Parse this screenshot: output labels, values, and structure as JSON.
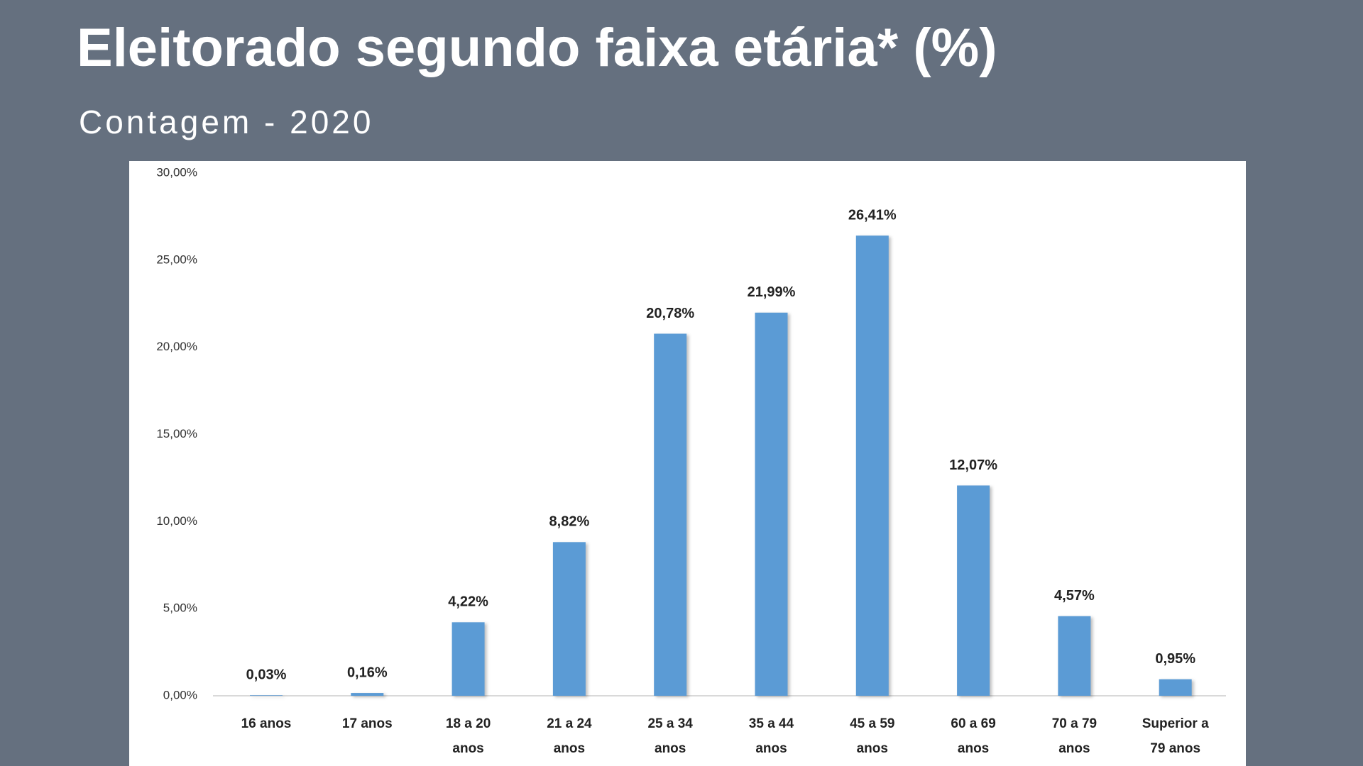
{
  "chart_data": {
    "type": "bar",
    "title": "Eleitorado segundo faixa etária* (%)",
    "subtitle": "Contagem - 2020",
    "categories": [
      "16 anos",
      "17 anos",
      "18 a 20 anos",
      "21 a 24 anos",
      "25 a 34 anos",
      "35 a 44 anos",
      "45 a 59 anos",
      "60 a 69 anos",
      "70 a 79 anos",
      "Superior a 79 anos"
    ],
    "values": [
      0.03,
      0.16,
      4.22,
      8.82,
      20.78,
      21.99,
      26.41,
      12.07,
      4.57,
      0.95
    ],
    "value_labels": [
      "0,03%",
      "0,16%",
      "4,22%",
      "8,82%",
      "20,78%",
      "21,99%",
      "26,41%",
      "12,07%",
      "4,57%",
      "0,95%"
    ],
    "color": "#5b9bd5",
    "ylim": [
      0,
      30
    ],
    "yticks": [
      {
        "value": 0,
        "label": "0,00%"
      },
      {
        "value": 5,
        "label": "5,00%"
      },
      {
        "value": 10,
        "label": "10,00%"
      },
      {
        "value": 15,
        "label": "15,00%"
      },
      {
        "value": 20,
        "label": "20,00%"
      },
      {
        "value": 25,
        "label": "25,00%"
      },
      {
        "value": 30,
        "label": "30,00%"
      }
    ],
    "grid": false
  }
}
